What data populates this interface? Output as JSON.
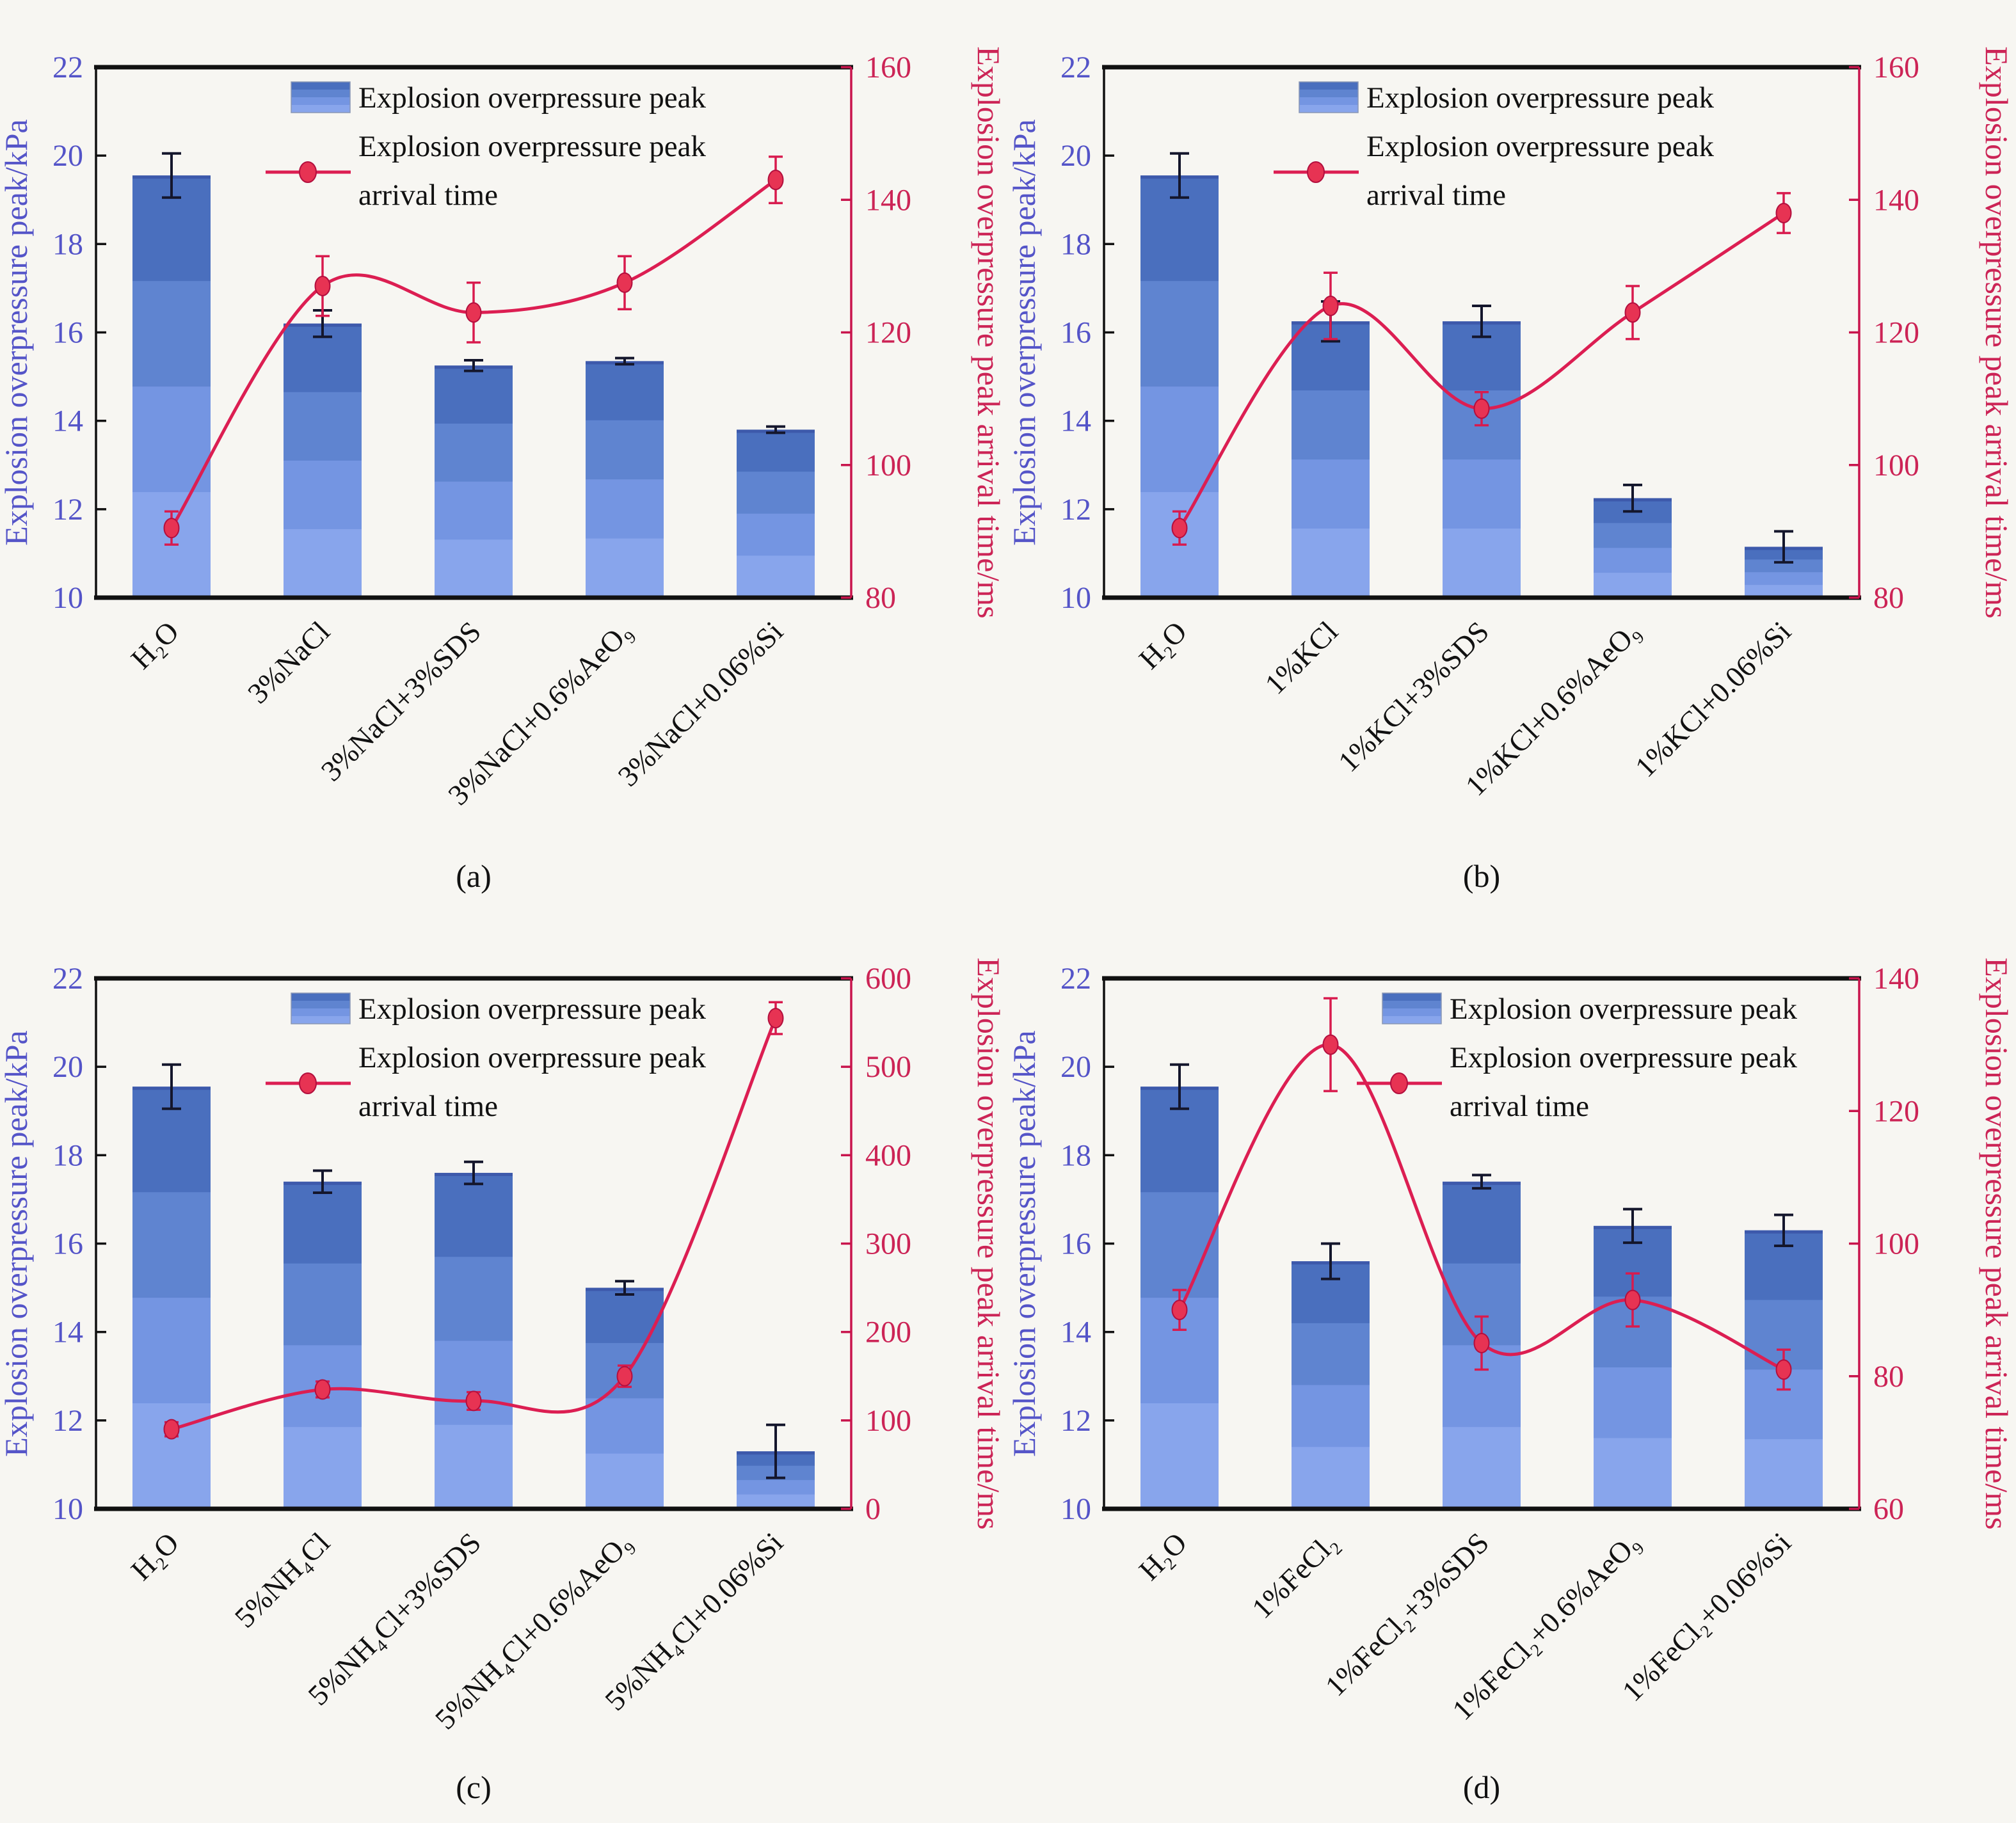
{
  "figure": {
    "background": "#f7f6f2",
    "legend": {
      "bar_entry_label": "Explosion overpressure peak",
      "line_entry_label_line1": "Explosion overpressure peak",
      "line_entry_label_line2": "arrival time"
    }
  },
  "colors": {
    "bar_bands_top_to_bottom": [
      "#4a6fbe",
      "#5f84d0",
      "#7495e2",
      "#88a5ec"
    ],
    "bar_top_cap": "#3d59ab",
    "bar_error": "#14162c",
    "line": "#dc1e52",
    "marker_fill": "#e73353",
    "marker_edge": "#b30f3e",
    "point_error": "#d81b4e",
    "left_axis_text": "#5454c8",
    "right_axis_text": "#cc2456",
    "right_spine": "#c8144c",
    "spine_black": "#111111",
    "label_text": "#111111"
  },
  "chart_data": [
    {
      "panel": "a",
      "type": "bar+line",
      "caption": "(a)",
      "categories": [
        "H₂O",
        "3%NaCl",
        "3%NaCl+3%SDS",
        "3%NaCl+0.6%AeO₉",
        "3%NaCl+0.06%Si"
      ],
      "left_axis": {
        "label": "Explosion overpressure peak/kPa",
        "min": 10,
        "max": 22,
        "ticks": [
          10,
          12,
          14,
          16,
          18,
          20,
          22
        ]
      },
      "right_axis": {
        "label": "Explosion overpressure peak arrival time/ms",
        "min": 80,
        "max": 160,
        "ticks": [
          80,
          100,
          120,
          140,
          160
        ]
      },
      "series": [
        {
          "name": "Explosion overpressure peak",
          "type": "bar",
          "axis": "left",
          "values": [
            19.55,
            16.2,
            15.25,
            15.35,
            13.8
          ],
          "errors": [
            0.5,
            0.3,
            0.12,
            0.07,
            0.07
          ]
        },
        {
          "name": "Explosion overpressure peak arrival time",
          "type": "line",
          "axis": "right",
          "values": [
            90.5,
            127,
            123,
            127.5,
            143
          ],
          "errors": [
            2.5,
            4.5,
            4.5,
            4,
            3.5
          ]
        }
      ]
    },
    {
      "panel": "b",
      "type": "bar+line",
      "caption": "(b)",
      "categories": [
        "H₂O",
        "1%KCl",
        "1%KCl+3%SDS",
        "1%KCl+0.6%AeO₉",
        "1%KCl+0.06%Si"
      ],
      "left_axis": {
        "label": "Explosion overpressure peak/kPa",
        "min": 10,
        "max": 22,
        "ticks": [
          10,
          12,
          14,
          16,
          18,
          20,
          22
        ]
      },
      "right_axis": {
        "label": "Explosion overpressure peak arrival time/ms",
        "min": 80,
        "max": 160,
        "ticks": [
          80,
          100,
          120,
          140,
          160
        ]
      },
      "series": [
        {
          "name": "Explosion overpressure peak",
          "type": "bar",
          "axis": "left",
          "values": [
            19.55,
            16.25,
            16.25,
            12.25,
            11.15
          ],
          "errors": [
            0.5,
            0.45,
            0.35,
            0.3,
            0.35
          ]
        },
        {
          "name": "Explosion overpressure peak arrival time",
          "type": "line",
          "axis": "right",
          "values": [
            90.5,
            124,
            108.5,
            123,
            138
          ],
          "errors": [
            2.5,
            5,
            2.5,
            4,
            3
          ]
        }
      ]
    },
    {
      "panel": "c",
      "type": "bar+line",
      "caption": "(c)",
      "categories": [
        "H₂O",
        "5%NH₄Cl",
        "5%NH₄Cl+3%SDS",
        "5%NH₄Cl+0.6%AeO₉",
        "5%NH₄Cl+0.06%Si"
      ],
      "left_axis": {
        "label": "Explosion overpressure peak/kPa",
        "min": 10,
        "max": 22,
        "ticks": [
          10,
          12,
          14,
          16,
          18,
          20,
          22
        ]
      },
      "right_axis": {
        "label": "Explosion overpressure peak arrival time/ms",
        "min": 0,
        "max": 600,
        "ticks": [
          0,
          100,
          200,
          300,
          400,
          500,
          600
        ]
      },
      "series": [
        {
          "name": "Explosion overpressure peak",
          "type": "bar",
          "axis": "left",
          "values": [
            19.55,
            17.4,
            17.6,
            15.0,
            11.3
          ],
          "errors": [
            0.5,
            0.25,
            0.25,
            0.15,
            0.6
          ]
        },
        {
          "name": "Explosion overpressure peak arrival time",
          "type": "line",
          "axis": "right",
          "values": [
            90,
            135,
            122,
            150,
            555
          ],
          "errors": [
            8,
            9,
            10,
            12,
            18
          ]
        }
      ]
    },
    {
      "panel": "d",
      "type": "bar+line",
      "caption": "(d)",
      "categories": [
        "H₂O",
        "1%FeCl₂",
        "1%FeCl₂+3%SDS",
        "1%FeCl₂+0.6%AeO₉",
        "1%FeCl₂+0.06%Si"
      ],
      "left_axis": {
        "label": "Explosion overpressure peak/kPa",
        "min": 10,
        "max": 22,
        "ticks": [
          10,
          12,
          14,
          16,
          18,
          20,
          22
        ]
      },
      "right_axis": {
        "label": "Explosion overpressure peak arrival time/ms",
        "min": 60,
        "max": 140,
        "ticks": [
          60,
          80,
          100,
          120,
          140
        ]
      },
      "series": [
        {
          "name": "Explosion overpressure peak",
          "type": "bar",
          "axis": "left",
          "values": [
            19.55,
            15.6,
            17.4,
            16.4,
            16.3
          ],
          "errors": [
            0.5,
            0.4,
            0.15,
            0.38,
            0.35
          ]
        },
        {
          "name": "Explosion overpressure peak arrival time",
          "type": "line",
          "axis": "right",
          "values": [
            90,
            130,
            85,
            91.5,
            81
          ],
          "errors": [
            3,
            7,
            4,
            4,
            3
          ]
        }
      ]
    }
  ]
}
